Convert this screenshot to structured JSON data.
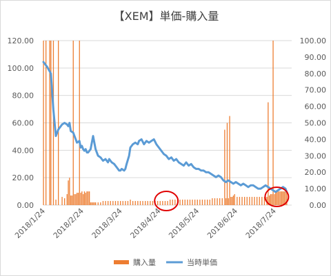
{
  "colors": {
    "bar": "#ED7D31",
    "line": "#5B9BD5",
    "grid": "#d9d9d9",
    "highlight": "#E00000"
  },
  "chart_data": {
    "type": "bar",
    "title": "【XEM】単価-購入量",
    "left_axis": {
      "ticks": [
        "0.00",
        "20.00",
        "40.00",
        "60.00",
        "80.00",
        "100.00",
        "120.00"
      ],
      "ylim": [
        0,
        120
      ]
    },
    "right_axis": {
      "ticks": [
        "0.00",
        "10.00",
        "20.00",
        "30.00",
        "40.00",
        "50.00",
        "60.00",
        "70.00",
        "80.00",
        "90.00",
        "100.00"
      ],
      "ylim": [
        0,
        100
      ]
    },
    "x_ticks": [
      "2018/1/24",
      "2018/2/24",
      "2018/3/24",
      "2018/4/24",
      "2018/5/24",
      "2018/6/24",
      "2018/7/24"
    ],
    "x_range_days": [
      0,
      200
    ],
    "grid": true,
    "legend_position": "bottom",
    "series": [
      {
        "name": "購入量",
        "kind": "bar",
        "axis": "left",
        "x": [
          0,
          2,
          5,
          6,
          8,
          10,
          12,
          14,
          15,
          17,
          19,
          20,
          21,
          22,
          23,
          24,
          25,
          26,
          27,
          28,
          29,
          30,
          31,
          32,
          33,
          34,
          35,
          36,
          37,
          38,
          39,
          40,
          41,
          42,
          44,
          46,
          48,
          50,
          52,
          54,
          56,
          58,
          60,
          62,
          64,
          66,
          68,
          70,
          72,
          74,
          76,
          78,
          80,
          82,
          84,
          86,
          88,
          90,
          92,
          94,
          96,
          98,
          100,
          102,
          104,
          106,
          108,
          110,
          112,
          114,
          116,
          118,
          120,
          122,
          124,
          126,
          128,
          130,
          132,
          134,
          136,
          138,
          140,
          142,
          144,
          146,
          147,
          148,
          149,
          150,
          151,
          152,
          153,
          154,
          156,
          158,
          160,
          162,
          164,
          166,
          168,
          170,
          172,
          174,
          176,
          178,
          180,
          181,
          182,
          183,
          184,
          185,
          186,
          187,
          188,
          189,
          190,
          191,
          192,
          193,
          194,
          195,
          196
        ],
        "values": [
          120,
          120,
          120,
          120,
          120,
          4,
          120,
          0,
          6,
          5,
          8,
          18,
          20,
          7,
          7,
          120,
          8,
          8,
          9,
          9,
          120,
          9,
          10,
          8,
          10,
          9,
          10,
          10,
          10,
          2,
          2,
          2,
          2,
          2,
          2,
          2,
          3,
          3,
          3,
          3,
          3,
          3,
          3,
          3,
          3,
          3,
          3,
          4,
          3,
          3,
          3,
          3,
          3,
          3,
          3,
          3,
          3,
          3,
          3,
          3,
          3,
          3,
          3,
          4,
          4,
          4,
          4,
          4,
          4,
          4,
          4,
          4,
          4,
          4,
          4,
          4,
          4,
          4,
          4,
          4,
          5,
          5,
          5,
          5,
          5,
          55,
          5,
          60,
          5,
          65,
          6,
          6,
          7,
          8,
          6,
          6,
          6,
          6,
          6,
          6,
          6,
          6,
          6,
          6,
          6,
          6,
          6,
          75,
          7,
          8,
          8,
          120,
          8,
          9,
          10,
          10,
          10,
          10,
          10,
          10,
          10,
          10,
          10
        ]
      },
      {
        "name": "当時単価",
        "kind": "line",
        "axis": "right",
        "x": [
          0,
          3,
          6,
          8,
          10,
          12,
          14,
          15,
          17,
          19,
          20,
          21,
          22,
          24,
          25,
          26,
          27,
          29,
          30,
          31,
          32,
          33,
          34,
          35,
          36,
          37,
          38,
          40,
          42,
          44,
          46,
          48,
          50,
          52,
          53,
          55,
          57,
          59,
          61,
          62,
          63,
          65,
          66,
          67,
          69,
          70,
          72,
          74,
          76,
          77,
          79,
          81,
          83,
          85,
          87,
          89,
          91,
          93,
          95,
          97,
          99,
          101,
          103,
          105,
          107,
          109,
          111,
          113,
          115,
          117,
          119,
          121,
          123,
          125,
          127,
          129,
          131,
          133,
          135,
          137,
          139,
          141,
          143,
          145,
          147,
          149,
          151,
          153,
          155,
          157,
          159,
          161,
          163,
          165,
          167,
          169,
          171,
          173,
          175,
          177,
          179,
          181,
          183,
          185,
          187,
          189,
          191,
          193,
          195,
          196
        ],
        "values": [
          87,
          84,
          80,
          58,
          42,
          46,
          48,
          49,
          50,
          49,
          48,
          50,
          45,
          44,
          42,
          40,
          38,
          39,
          35,
          36,
          34,
          33,
          34,
          32,
          32,
          33,
          34,
          42,
          34,
          30,
          29,
          27,
          28,
          26,
          28,
          26,
          25,
          23,
          21,
          21,
          22,
          21,
          22,
          25,
          30,
          35,
          37,
          38,
          37,
          39,
          40,
          37,
          39,
          38,
          39,
          40,
          37,
          35,
          33,
          31,
          30,
          28,
          29,
          27,
          28,
          26,
          25,
          24,
          26,
          24,
          25,
          23,
          22,
          22,
          21,
          21,
          20,
          20,
          19,
          18,
          17,
          18,
          17,
          15,
          14,
          15,
          14,
          13,
          14,
          13,
          12,
          13,
          12,
          11,
          12,
          12,
          11,
          10,
          10,
          11,
          12,
          11,
          10,
          9,
          8,
          9,
          10,
          11,
          10,
          8
        ]
      }
    ],
    "annotations": [
      {
        "shape": "circle",
        "center_x": 99,
        "center_y_left_axis": 3
      },
      {
        "shape": "circle",
        "center_x": 188,
        "center_y_left_axis": 6
      }
    ]
  }
}
